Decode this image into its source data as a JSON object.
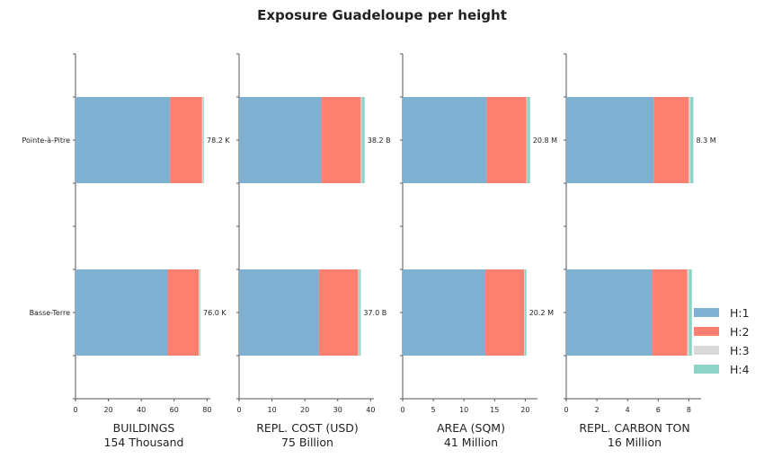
{
  "chart_data": {
    "type": "bar",
    "orientation": "horizontal",
    "stacked": true,
    "title": "Exposure Guadeloupe per height",
    "categories": [
      "Pointe-à-Pitre",
      "Basse-Terre"
    ],
    "series_names": [
      "H:1",
      "H:2",
      "H:3",
      "H:4"
    ],
    "colors": [
      "#7fb0d1",
      "#fb8070",
      "#d9d9d9",
      "#8ed3c7"
    ],
    "legend_position": "lower-right",
    "grid": false,
    "panels": [
      {
        "xlabel": "BUILDINGS",
        "subtitle": "154 Thousand",
        "xlim": [
          0,
          82
        ],
        "xticks": [
          0,
          20,
          40,
          60,
          80
        ],
        "series": [
          {
            "name": "H:1",
            "values": [
              57.5,
              56.0
            ]
          },
          {
            "name": "H:2",
            "values": [
              19.5,
              19.0
            ]
          },
          {
            "name": "H:3",
            "values": [
              0.8,
              0.7
            ]
          },
          {
            "name": "H:4",
            "values": [
              0.4,
              0.3
            ]
          }
        ],
        "labels": [
          "78.2 K",
          "76.0 K"
        ]
      },
      {
        "xlabel": "REPL. COST (USD)",
        "subtitle": "75 Billion",
        "xlim": [
          0,
          41
        ],
        "xticks": [
          0,
          10,
          20,
          30,
          40
        ],
        "series": [
          {
            "name": "H:1",
            "values": [
              25.0,
              24.3
            ]
          },
          {
            "name": "H:2",
            "values": [
              12.0,
              11.9
            ]
          },
          {
            "name": "H:3",
            "values": [
              0.3,
              0.3
            ]
          },
          {
            "name": "H:4",
            "values": [
              0.9,
              0.5
            ]
          }
        ],
        "labels": [
          "38.2 B",
          "37.0 B"
        ]
      },
      {
        "xlabel": "AREA (SQM)",
        "subtitle": "41 Million",
        "xlim": [
          0,
          22
        ],
        "xticks": [
          0,
          5,
          10,
          15,
          20
        ],
        "series": [
          {
            "name": "H:1",
            "values": [
              13.7,
              13.5
            ]
          },
          {
            "name": "H:2",
            "values": [
              6.5,
              6.3
            ]
          },
          {
            "name": "H:3",
            "values": [
              0.1,
              0.1
            ]
          },
          {
            "name": "H:4",
            "values": [
              0.5,
              0.3
            ]
          }
        ],
        "labels": [
          "20.8 M",
          "20.2 M"
        ]
      },
      {
        "xlabel": "REPL. CARBON TON",
        "subtitle": "16 Million",
        "xlim": [
          0,
          8.8
        ],
        "xticks": [
          0,
          2,
          4,
          6,
          8
        ],
        "series": [
          {
            "name": "H:1",
            "values": [
              5.7,
              5.6
            ]
          },
          {
            "name": "H:2",
            "values": [
              2.3,
              2.3
            ]
          },
          {
            "name": "H:3",
            "values": [
              0.1,
              0.1
            ]
          },
          {
            "name": "H:4",
            "values": [
              0.2,
              0.2
            ]
          }
        ],
        "labels": [
          "8.3 M",
          "8.2 M"
        ]
      }
    ]
  }
}
